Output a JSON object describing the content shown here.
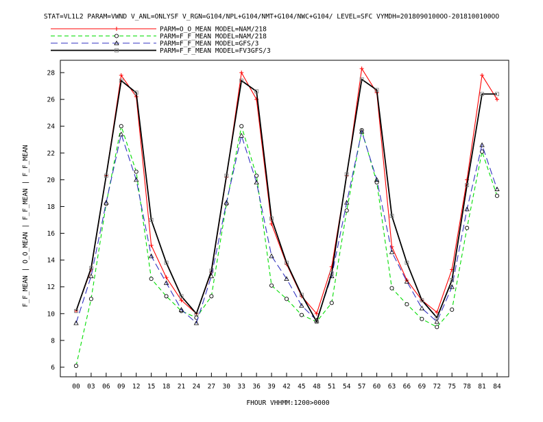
{
  "chart_data": {
    "type": "line",
    "title": "STAT=VL1L2 PARAM=VWND V_ANL=ONLYSF V_RGN=G104/NPL+G104/NMT+G104/NWC+G104/ LEVEL=SFC VYMDH=2018090100OO-2018100100OO",
    "xlabel": "FHOUR VHHMM:1200>0000",
    "ylabel": "F_F_MEAN | O_O_MEAN | F_F_MEAN | F_F_MEAN",
    "categories": [
      "00",
      "03",
      "06",
      "09",
      "12",
      "15",
      "18",
      "21",
      "24",
      "27",
      "30",
      "33",
      "36",
      "39",
      "42",
      "45",
      "48",
      "51",
      "54",
      "57",
      "60",
      "63",
      "66",
      "69",
      "72",
      "75",
      "78",
      "81",
      "84"
    ],
    "ylim": [
      5,
      30
    ],
    "yticks": [
      6,
      8,
      10,
      12,
      14,
      16,
      18,
      20,
      22,
      24,
      26,
      28
    ],
    "legend_position": "top-left",
    "grid": false,
    "series": [
      {
        "name": "PARM=O_O_MEAN MODEL=NAM/218",
        "color": "#ff0000",
        "dash": "solid",
        "marker": "plus",
        "values": [
          10.2,
          13.3,
          20.3,
          27.8,
          26.2,
          15.1,
          12.7,
          11.0,
          10.0,
          13.1,
          20.2,
          28.0,
          26.0,
          16.7,
          13.7,
          11.3,
          10.0,
          13.5,
          20.3,
          28.3,
          26.5,
          15.0,
          12.5,
          11.0,
          10.1,
          13.3,
          20.0,
          27.8,
          26.0
        ]
      },
      {
        "name": "PARM=F_F_MEAN MODEL=NAM/218",
        "color": "#00dd00",
        "dash": "dash",
        "marker": "diamond",
        "values": [
          6.1,
          11.1,
          18.2,
          24.0,
          20.6,
          12.6,
          11.3,
          10.2,
          9.7,
          11.3,
          18.2,
          24.0,
          20.3,
          12.1,
          11.1,
          9.9,
          9.4,
          10.8,
          17.7,
          23.7,
          19.8,
          11.9,
          10.7,
          9.6,
          9.0,
          10.3,
          16.4,
          22.1,
          18.8
        ]
      },
      {
        "name": "PARM=F_F_MEAN MODEL=GFS/3",
        "color": "#3030c0",
        "dash": "longdash",
        "marker": "triangle",
        "values": [
          9.3,
          12.8,
          18.3,
          23.4,
          20.0,
          14.3,
          12.3,
          10.3,
          9.3,
          12.8,
          18.3,
          23.3,
          19.8,
          14.3,
          12.6,
          10.6,
          9.5,
          12.8,
          18.3,
          23.6,
          20.0,
          14.6,
          12.4,
          10.4,
          9.4,
          12.0,
          17.8,
          22.6,
          19.3
        ]
      },
      {
        "name": "PARM=F_F_MEAN MODEL=FV3GFS/3",
        "color": "#000000",
        "dash": "solid",
        "marker": "square",
        "values": [
          10.2,
          13.4,
          20.3,
          27.4,
          26.5,
          17.0,
          13.8,
          11.3,
          10.0,
          13.2,
          20.3,
          27.4,
          26.6,
          17.1,
          13.8,
          11.4,
          9.4,
          13.0,
          20.4,
          27.5,
          26.7,
          17.3,
          13.8,
          11.0,
          9.7,
          12.5,
          19.6,
          26.4,
          26.4
        ]
      }
    ]
  }
}
